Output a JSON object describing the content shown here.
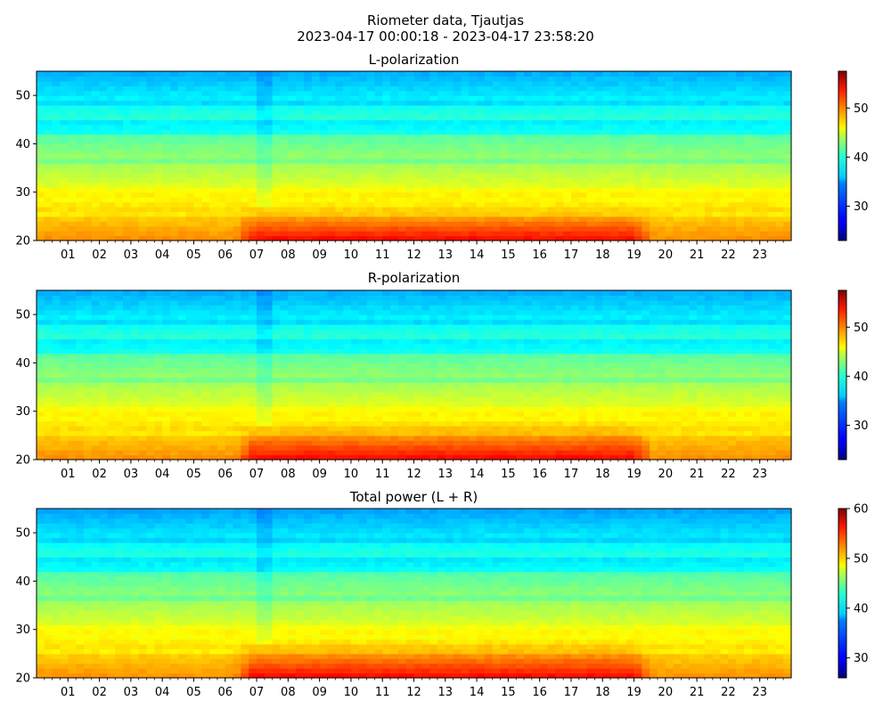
{
  "figure": {
    "title_line1": "Riometer data, Tjautjas",
    "title_line2": "2023-04-17 00:00:18 - 2023-04-17 23:58:20"
  },
  "chart_data": [
    {
      "type": "heatmap",
      "title": "L-polarization",
      "xlabel": "",
      "ylabel": "",
      "x_tick_labels": [
        "01",
        "02",
        "03",
        "04",
        "05",
        "06",
        "07",
        "08",
        "09",
        "10",
        "11",
        "12",
        "13",
        "14",
        "15",
        "16",
        "17",
        "18",
        "19",
        "20",
        "21",
        "22",
        "23"
      ],
      "x_tick_hours": [
        1,
        2,
        3,
        4,
        5,
        6,
        7,
        8,
        9,
        10,
        11,
        12,
        13,
        14,
        15,
        16,
        17,
        18,
        19,
        20,
        21,
        22,
        23
      ],
      "xlim_hours": [
        0,
        24
      ],
      "ylim": [
        20,
        55
      ],
      "y_ticks": [
        20,
        30,
        40,
        50
      ],
      "colormap": "jet",
      "colorbar_range": [
        23,
        57.5
      ],
      "colorbar_ticks": [
        30,
        40,
        50
      ],
      "enhancement": {
        "hours": [
          6.3,
          19.6
        ],
        "y_range": [
          20,
          27
        ]
      }
    },
    {
      "type": "heatmap",
      "title": "R-polarization",
      "xlabel": "",
      "ylabel": "",
      "x_tick_labels": [
        "01",
        "02",
        "03",
        "04",
        "05",
        "06",
        "07",
        "08",
        "09",
        "10",
        "11",
        "12",
        "13",
        "14",
        "15",
        "16",
        "17",
        "18",
        "19",
        "20",
        "21",
        "22",
        "23"
      ],
      "x_tick_hours": [
        1,
        2,
        3,
        4,
        5,
        6,
        7,
        8,
        9,
        10,
        11,
        12,
        13,
        14,
        15,
        16,
        17,
        18,
        19,
        20,
        21,
        22,
        23
      ],
      "xlim_hours": [
        0,
        24
      ],
      "ylim": [
        20,
        55
      ],
      "y_ticks": [
        20,
        30,
        40,
        50
      ],
      "colormap": "jet",
      "colorbar_range": [
        23,
        57.5
      ],
      "colorbar_ticks": [
        30,
        40,
        50
      ],
      "enhancement": {
        "hours": [
          6.3,
          19.6
        ],
        "y_range": [
          20,
          28
        ]
      }
    },
    {
      "type": "heatmap",
      "title": "Total power (L + R)",
      "xlabel": "",
      "ylabel": "",
      "x_tick_labels": [
        "01",
        "02",
        "03",
        "04",
        "05",
        "06",
        "07",
        "08",
        "09",
        "10",
        "11",
        "12",
        "13",
        "14",
        "15",
        "16",
        "17",
        "18",
        "19",
        "20",
        "21",
        "22",
        "23"
      ],
      "x_tick_hours": [
        1,
        2,
        3,
        4,
        5,
        6,
        7,
        8,
        9,
        10,
        11,
        12,
        13,
        14,
        15,
        16,
        17,
        18,
        19,
        20,
        21,
        22,
        23
      ],
      "xlim_hours": [
        0,
        24
      ],
      "ylim": [
        20,
        55
      ],
      "y_ticks": [
        20,
        30,
        40,
        50
      ],
      "colormap": "jet",
      "colorbar_range": [
        26,
        60
      ],
      "colorbar_ticks": [
        30,
        40,
        50,
        60
      ],
      "enhancement": {
        "hours": [
          6.3,
          19.6
        ],
        "y_range": [
          20,
          28
        ]
      }
    }
  ]
}
